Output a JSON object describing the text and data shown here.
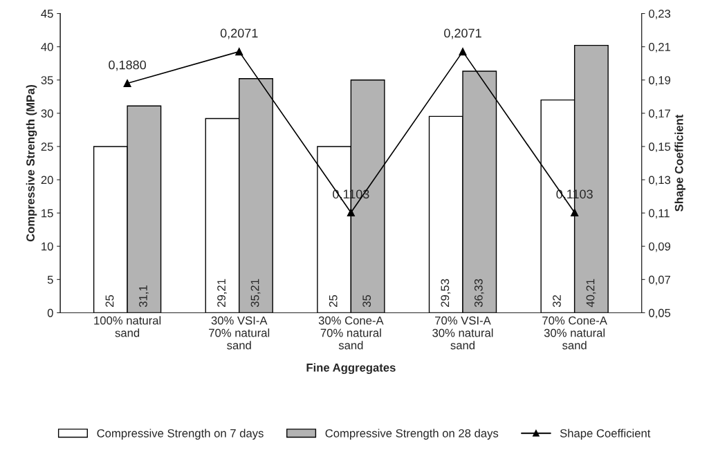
{
  "chart_data": {
    "type": "bar",
    "xlabel": "Fine Aggregates",
    "ylabel": "Compressive Strength (MPa)",
    "y2label": "Shape Coefficient",
    "categories": [
      "100% natural\nsand",
      "30% VSI-A\n70% natural\nsand",
      "30% Cone-A\n70% natural\nsand",
      "70% VSI-A\n30% natural\nsand",
      "70% Cone-A\n30% natural\nsand"
    ],
    "series": [
      {
        "name": "Compressive Strength on 7 days",
        "color": "#ffffff",
        "values": [
          25,
          29.21,
          25,
          29.53,
          32
        ],
        "value_labels": [
          "25",
          "29,21",
          "25",
          "29,53",
          "32"
        ]
      },
      {
        "name": "Compressive Strength on 28 days",
        "color": "#b3b3b3",
        "values": [
          31.1,
          35.21,
          35,
          36.33,
          40.21
        ],
        "value_labels": [
          "31,1",
          "35,21",
          "35",
          "36,33",
          "40,21"
        ]
      },
      {
        "name": "Shape Coefficient",
        "type": "line",
        "axis": "y2",
        "color": "#000000",
        "marker": "triangle",
        "values": [
          0.188,
          0.2071,
          0.1103,
          0.2071,
          0.1103
        ],
        "value_labels": [
          "0,1880",
          "0,2071",
          "0,1103",
          "0,2071",
          "0,1103"
        ]
      }
    ],
    "ylim": [
      0,
      45
    ],
    "yticks": [
      0,
      5,
      10,
      15,
      20,
      25,
      30,
      35,
      40,
      45
    ],
    "y2lim": [
      0.05,
      0.23
    ],
    "y2ticks": [
      {
        "value": 0.05,
        "label": "0,05"
      },
      {
        "value": 0.07,
        "label": "0,07"
      },
      {
        "value": 0.09,
        "label": "0,09"
      },
      {
        "value": 0.11,
        "label": "0,11"
      },
      {
        "value": 0.13,
        "label": "0,13"
      },
      {
        "value": 0.15,
        "label": "0,15"
      },
      {
        "value": 0.17,
        "label": "0,17"
      },
      {
        "value": 0.19,
        "label": "0,19"
      },
      {
        "value": 0.21,
        "label": "0,21"
      },
      {
        "value": 0.23,
        "label": "0,23"
      }
    ],
    "grid": false,
    "legend": "bottom"
  }
}
